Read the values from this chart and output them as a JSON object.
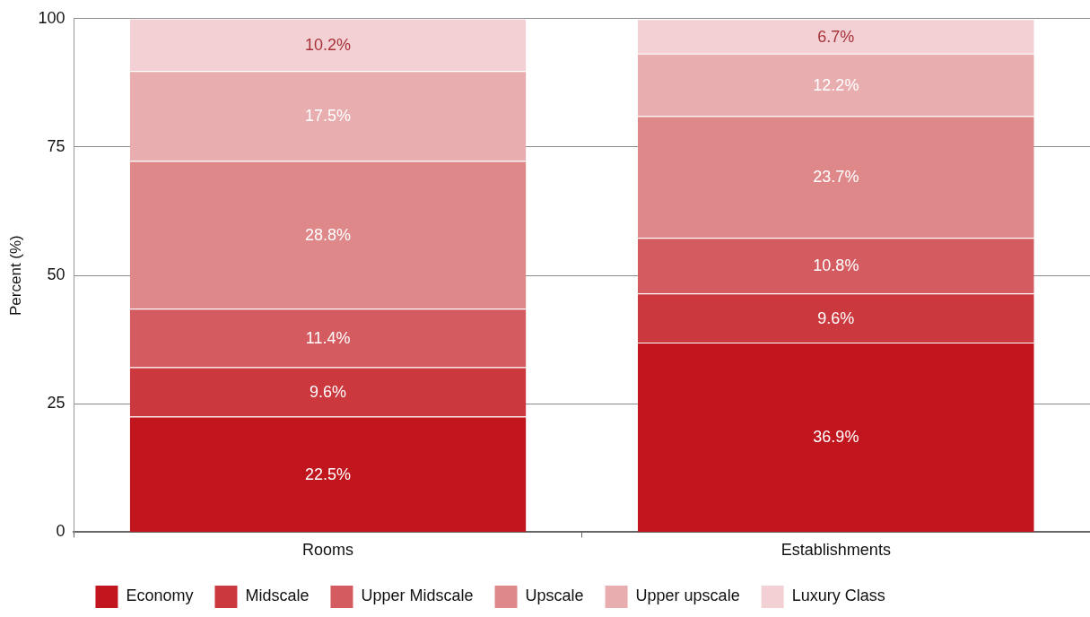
{
  "chart_data": {
    "type": "bar",
    "stacked": true,
    "ylabel": "Percent (%)",
    "categories": [
      "Rooms",
      "Establishments"
    ],
    "ylim": [
      0,
      100
    ],
    "yticks": [
      0,
      25,
      50,
      75,
      100
    ],
    "grid": "y",
    "legend": "bottom",
    "series": [
      {
        "name": "Economy",
        "color": "#c1161e",
        "values": [
          22.5,
          36.9
        ],
        "value_labels": [
          "22.5%",
          "36.9%"
        ]
      },
      {
        "name": "Midscale",
        "color": "#cb383e",
        "values": [
          9.6,
          9.6
        ],
        "value_labels": [
          "9.6%",
          "9.6%"
        ]
      },
      {
        "name": "Upper Midscale",
        "color": "#d45b60",
        "values": [
          11.4,
          10.8
        ],
        "value_labels": [
          "11.4%",
          "10.8%"
        ]
      },
      {
        "name": "Upscale",
        "color": "#df888a",
        "values": [
          28.8,
          23.7
        ],
        "value_labels": [
          "28.8%",
          "23.7%"
        ]
      },
      {
        "name": "Upper upscale",
        "color": "#e8adaf",
        "values": [
          17.5,
          12.2
        ],
        "value_labels": [
          "17.5%",
          "12.2%"
        ]
      },
      {
        "name": "Luxury Class",
        "color": "#f2d0d3",
        "values": [
          10.2,
          6.7
        ],
        "value_labels": [
          "10.2%",
          "6.7%"
        ]
      }
    ]
  }
}
